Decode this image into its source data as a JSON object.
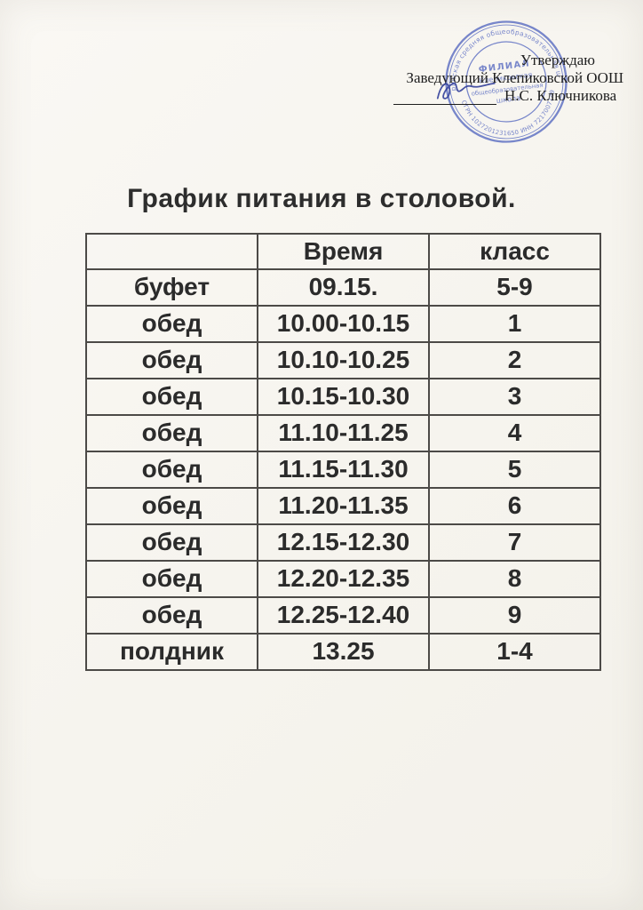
{
  "title": "График питания в столовой.",
  "approval": {
    "approve": "Утверждаю",
    "position": "Заведующий Клепиковской ООШ",
    "name": "Н.С. Ключникова"
  },
  "stamp": {
    "ring_top": "Гагаринская средняя общеобразовательная школа",
    "ring_bottom": "ОГРН 1027201231650  ИНН 7217007149",
    "center_lines": [
      "ФИЛИАЛ",
      "Клепиковская",
      "общеобразовательная",
      "школа"
    ]
  },
  "table": {
    "headers": [
      "",
      "Время",
      "класс"
    ],
    "rows": [
      [
        "буфет",
        "09.15.",
        "5-9"
      ],
      [
        "обед",
        "10.00-10.15",
        "1"
      ],
      [
        "обед",
        "10.10-10.25",
        "2"
      ],
      [
        "обед",
        "10.15-10.30",
        "3"
      ],
      [
        "обед",
        "11.10-11.25",
        "4"
      ],
      [
        "обед",
        "11.15-11.30",
        "5"
      ],
      [
        "обед",
        "11.20-11.35",
        "6"
      ],
      [
        "обед",
        "12.15-12.30",
        "7"
      ],
      [
        "обед",
        "12.20-12.35",
        "8"
      ],
      [
        "обед",
        "12.25-12.40",
        "9"
      ],
      [
        "полдник",
        "13.25",
        "1-4"
      ]
    ]
  },
  "colors": {
    "paper": "#f7f5f0",
    "ink": "#2b2b2b",
    "stamp_blue": "#5c6ec2",
    "signature_blue": "#33409a"
  }
}
